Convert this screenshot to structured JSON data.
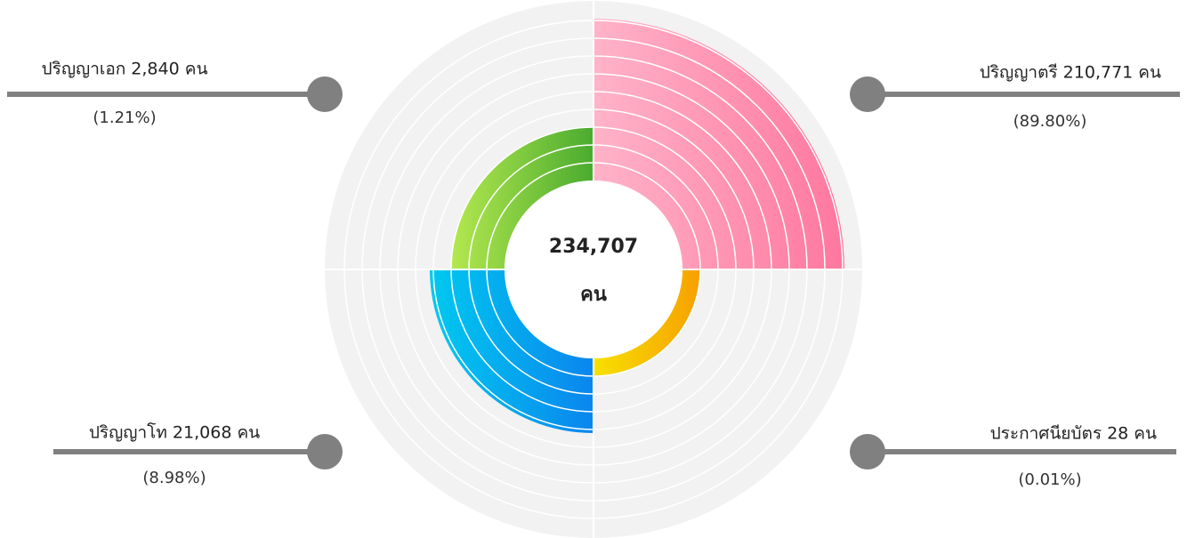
{
  "total": "234,707",
  "unit": "คน",
  "items": [
    {
      "label": "ปริญญาตรี 210,771 คน",
      "percent": "(89.80%)"
    },
    {
      "label": "ประกาศนียบัตร 28 คน",
      "percent": "(0.01%)"
    },
    {
      "label": "ปริญญาโท 21,068 คน",
      "percent": "(8.98%)"
    },
    {
      "label": "ปริญญาเอก 2,840 คน",
      "percent": "(1.21%)"
    }
  ]
}
